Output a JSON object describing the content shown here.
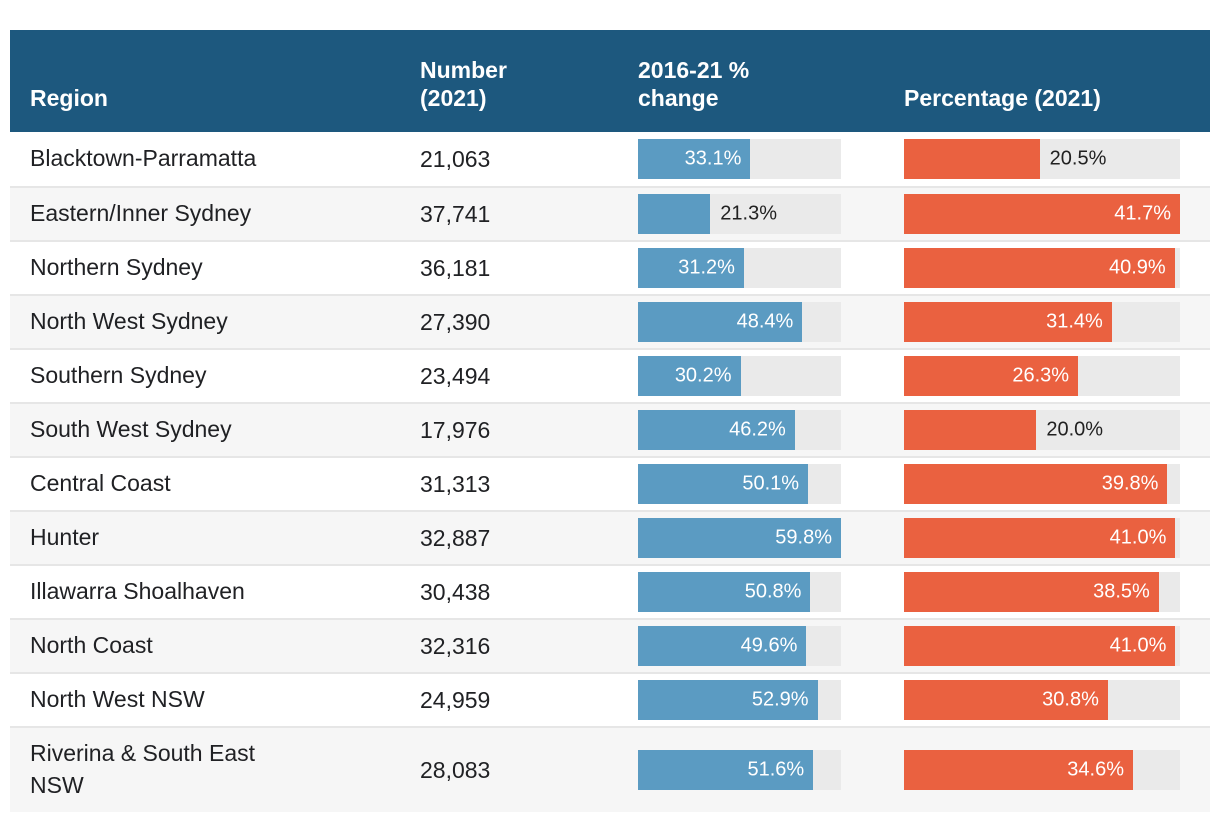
{
  "header": {
    "columns": [
      {
        "id": "region",
        "label": "Region"
      },
      {
        "id": "number",
        "label": "Number\n(2021)"
      },
      {
        "id": "change",
        "label": "2016-21 %\nchange"
      },
      {
        "id": "percentage",
        "label": "Percentage (2021)"
      }
    ]
  },
  "colors": {
    "header_bg": "#1d587e",
    "header_text": "#ffffff",
    "change_bar": "#5b9bc2",
    "percentage_bar": "#ea6140",
    "bar_track": "#eaeaea",
    "row_alt_bg": "#f6f6f6",
    "row_separator": "#e6e6e6",
    "text": "#202124",
    "outside_label": "#212121"
  },
  "chart_data": {
    "type": "table",
    "title": "",
    "columns": [
      "Region",
      "Number (2021)",
      "2016-21 % change",
      "Percentage (2021)"
    ],
    "bar_columns": {
      "change": {
        "type": "bar",
        "color": "#5b9bc2",
        "scale_max": 59.8,
        "unit": "%"
      },
      "percentage": {
        "type": "bar",
        "color": "#ea6140",
        "scale_max": 41.7,
        "unit": "%"
      }
    },
    "rows": [
      {
        "region": "Blacktown-Parramatta",
        "number": "21,063",
        "change": 33.1,
        "change_label": "33.1%",
        "change_label_inside": true,
        "percentage": 20.5,
        "percentage_label": "20.5%",
        "percentage_label_inside": false
      },
      {
        "region": "Eastern/Inner Sydney",
        "number": "37,741",
        "change": 21.3,
        "change_label": "21.3%",
        "change_label_inside": false,
        "percentage": 41.7,
        "percentage_label": "41.7%",
        "percentage_label_inside": true
      },
      {
        "region": "Northern Sydney",
        "number": "36,181",
        "change": 31.2,
        "change_label": "31.2%",
        "change_label_inside": true,
        "percentage": 40.9,
        "percentage_label": "40.9%",
        "percentage_label_inside": true
      },
      {
        "region": "North West Sydney",
        "number": "27,390",
        "change": 48.4,
        "change_label": "48.4%",
        "change_label_inside": true,
        "percentage": 31.4,
        "percentage_label": "31.4%",
        "percentage_label_inside": true
      },
      {
        "region": "Southern Sydney",
        "number": "23,494",
        "change": 30.2,
        "change_label": "30.2%",
        "change_label_inside": true,
        "percentage": 26.3,
        "percentage_label": "26.3%",
        "percentage_label_inside": true
      },
      {
        "region": "South West Sydney",
        "number": "17,976",
        "change": 46.2,
        "change_label": "46.2%",
        "change_label_inside": true,
        "percentage": 20.0,
        "percentage_label": "20.0%",
        "percentage_label_inside": false
      },
      {
        "region": "Central Coast",
        "number": "31,313",
        "change": 50.1,
        "change_label": "50.1%",
        "change_label_inside": true,
        "percentage": 39.8,
        "percentage_label": "39.8%",
        "percentage_label_inside": true
      },
      {
        "region": "Hunter",
        "number": "32,887",
        "change": 59.8,
        "change_label": "59.8%",
        "change_label_inside": true,
        "percentage": 41.0,
        "percentage_label": "41.0%",
        "percentage_label_inside": true
      },
      {
        "region": "Illawarra Shoalhaven",
        "number": "30,438",
        "change": 50.8,
        "change_label": "50.8%",
        "change_label_inside": true,
        "percentage": 38.5,
        "percentage_label": "38.5%",
        "percentage_label_inside": true
      },
      {
        "region": "North Coast",
        "number": "32,316",
        "change": 49.6,
        "change_label": "49.6%",
        "change_label_inside": true,
        "percentage": 41.0,
        "percentage_label": "41.0%",
        "percentage_label_inside": true
      },
      {
        "region": "North West NSW",
        "number": "24,959",
        "change": 52.9,
        "change_label": "52.9%",
        "change_label_inside": true,
        "percentage": 30.8,
        "percentage_label": "30.8%",
        "percentage_label_inside": true
      },
      {
        "region": "Riverina & South East NSW",
        "number": "28,083",
        "change": 51.6,
        "change_label": "51.6%",
        "change_label_inside": true,
        "percentage": 34.6,
        "percentage_label": "34.6%",
        "percentage_label_inside": true
      }
    ]
  }
}
